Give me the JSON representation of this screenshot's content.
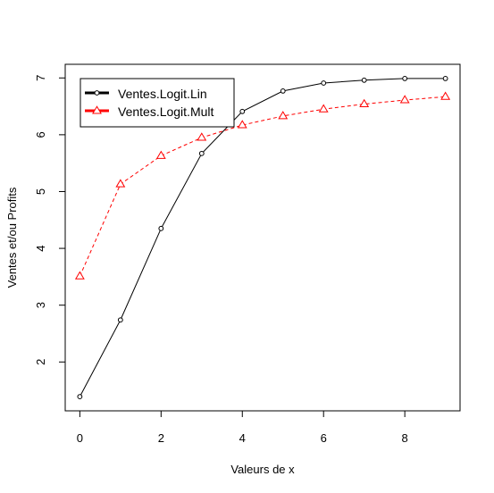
{
  "chart_data": {
    "type": "line",
    "title": "",
    "xlabel": "Valeurs de x",
    "ylabel": "Ventes et/ou Profits",
    "x": [
      0,
      1,
      2,
      3,
      4,
      5,
      6,
      7,
      8,
      9
    ],
    "xlim": [
      -0.36,
      9.36
    ],
    "ylim": [
      1.14,
      7.24
    ],
    "xticks": [
      0,
      2,
      4,
      6,
      8
    ],
    "yticks": [
      2,
      3,
      4,
      5,
      6,
      7
    ],
    "xtick_labels": [
      "0",
      "2",
      "4",
      "6",
      "8"
    ],
    "ytick_labels": [
      "2",
      "3",
      "4",
      "5",
      "6",
      "7"
    ],
    "grid": false,
    "legend_position": "top-left",
    "series": [
      {
        "name": "Ventes.Logit.Lin",
        "color": "#000000",
        "line_style": "solid",
        "marker": "circle",
        "values": [
          1.39,
          2.74,
          4.35,
          5.67,
          6.41,
          6.77,
          6.91,
          6.96,
          6.99,
          6.99
        ]
      },
      {
        "name": "Ventes.Logit.Mult",
        "color": "#ff0000",
        "line_style": "dashed",
        "marker": "triangle",
        "values": [
          3.51,
          5.13,
          5.63,
          5.95,
          6.17,
          6.33,
          6.45,
          6.54,
          6.61,
          6.67
        ]
      }
    ]
  }
}
